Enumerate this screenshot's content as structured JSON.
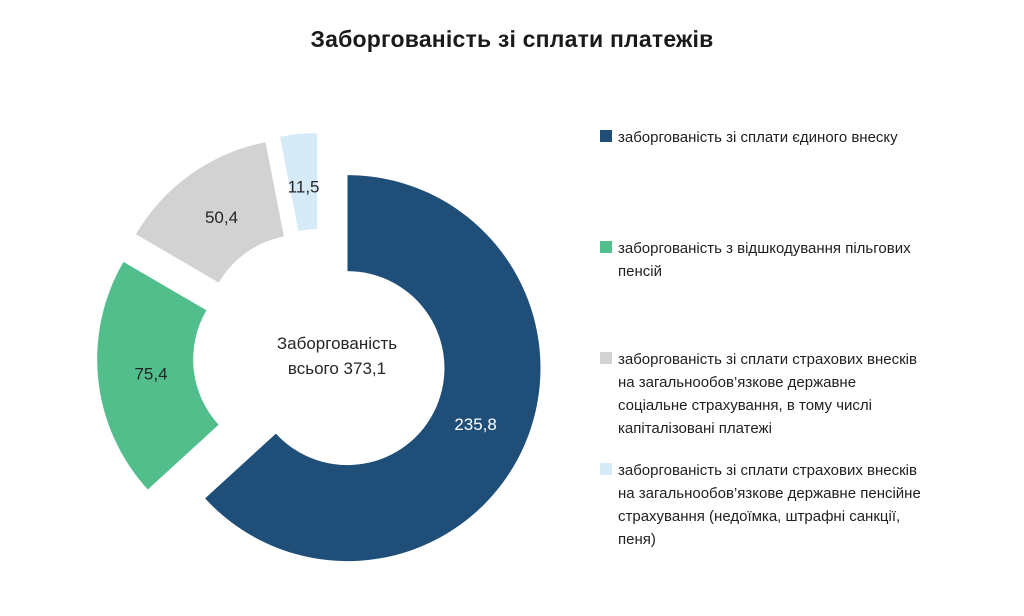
{
  "title": "Заборгованість зі сплати платежів",
  "chart_data": {
    "type": "pie",
    "subtype": "exploded-doughnut",
    "title": "Заборгованість зі сплати платежів",
    "total": 373.1,
    "center_text_line1": "Заборгованість",
    "center_text_line2": "всього 373,1",
    "legend_position": "right",
    "start_angle_deg": 0,
    "direction": "clockwise",
    "background_color": "#ffffff",
    "slices": [
      {
        "label": "заборгованість зі сплати єдиного внеску",
        "value": 235.8,
        "display": "235,8",
        "color": "#1F4E79",
        "label_color": "#FFFFFF"
      },
      {
        "label": "заборгованість з відшкодування пільгових пенсій",
        "value": 75.4,
        "display": "75,4",
        "color": "#52BE8C",
        "label_color": "#262626"
      },
      {
        "label": "заборгованість зі сплати страхових внесків на загальнообов’язкове державне соціальне страхування, в тому числі капіталізовані платежі",
        "value": 50.4,
        "display": "50,4",
        "color": "#D2D2D2",
        "label_color": "#262626"
      },
      {
        "label": "заборгованість зі сплати страхових внесків на загальнообов’язкове державне пенсійне  страхування (недоїмка, штрафні санкції, пеня)",
        "value": 11.5,
        "display": "11,5",
        "color": "#D6EBF8",
        "label_color": "#262626"
      }
    ]
  }
}
